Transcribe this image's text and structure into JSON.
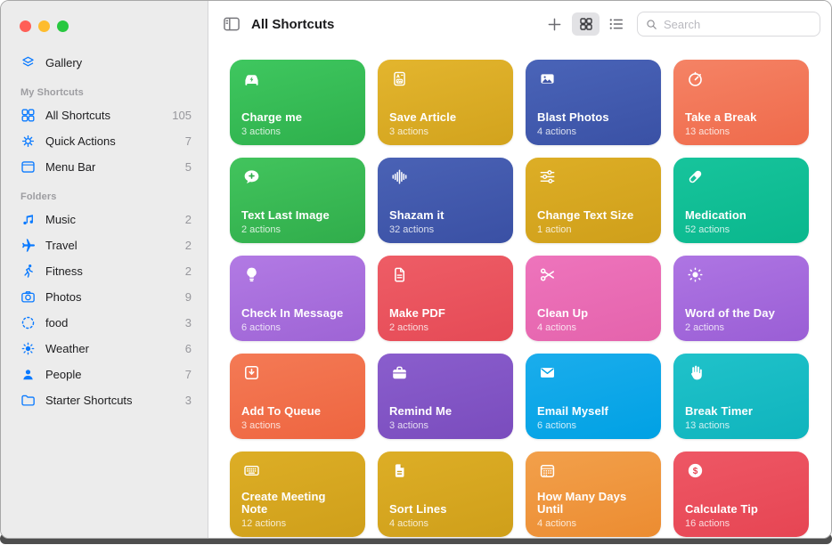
{
  "colors": {
    "accent": "#0a7aff",
    "traffic_red": "#ff5f57",
    "traffic_yellow": "#febc2e",
    "traffic_green": "#28c840"
  },
  "sidebar": {
    "gallery": {
      "label": "Gallery",
      "icon": "layers-icon"
    },
    "my_shortcuts": {
      "header": "My Shortcuts",
      "items": [
        {
          "label": "All Shortcuts",
          "icon": "grid-icon",
          "count": "105"
        },
        {
          "label": "Quick Actions",
          "icon": "gear-icon",
          "count": "7"
        },
        {
          "label": "Menu Bar",
          "icon": "menubar-icon",
          "count": "5"
        }
      ]
    },
    "folders": {
      "header": "Folders",
      "items": [
        {
          "label": "Music",
          "icon": "music-icon",
          "count": "2"
        },
        {
          "label": "Travel",
          "icon": "airplane-icon",
          "count": "2"
        },
        {
          "label": "Fitness",
          "icon": "runner-icon",
          "count": "2"
        },
        {
          "label": "Photos",
          "icon": "camera-icon",
          "count": "9"
        },
        {
          "label": "food",
          "icon": "dashed-circle-icon",
          "count": "3"
        },
        {
          "label": "Weather",
          "icon": "sun-icon",
          "count": "6"
        },
        {
          "label": "People",
          "icon": "person-icon",
          "count": "7"
        },
        {
          "label": "Starter Shortcuts",
          "icon": "folder-icon",
          "count": "3"
        }
      ]
    }
  },
  "toolbar": {
    "title": "All Shortcuts",
    "search_placeholder": "Search"
  },
  "cards": [
    {
      "title": "Charge me",
      "subtitle": "3 actions",
      "icon": "car-charge-icon",
      "color_from": "#3fc75f",
      "color_to": "#2eb04c"
    },
    {
      "title": "Save Article",
      "subtitle": "3 actions",
      "icon": "article-icon",
      "color_from": "#e3b52e",
      "color_to": "#d2a31d"
    },
    {
      "title": "Blast Photos",
      "subtitle": "4 actions",
      "icon": "photo-icon",
      "color_from": "#4a64b8",
      "color_to": "#3a51a5"
    },
    {
      "title": "Take a Break",
      "subtitle": "13 actions",
      "icon": "timer-icon",
      "color_from": "#f58365",
      "color_to": "#ef6a4b"
    },
    {
      "title": "Text Last Image",
      "subtitle": "2 actions",
      "icon": "message-plus-icon",
      "color_from": "#42c45d",
      "color_to": "#30ad4b"
    },
    {
      "title": "Shazam it",
      "subtitle": "32 actions",
      "icon": "waveform-icon",
      "color_from": "#4a62b5",
      "color_to": "#3a50a4"
    },
    {
      "title": "Change Text Size",
      "subtitle": "1 action",
      "icon": "sliders-icon",
      "color_from": "#ddae26",
      "color_to": "#cf9f1a"
    },
    {
      "title": "Medication",
      "subtitle": "52 actions",
      "icon": "pill-icon",
      "color_from": "#17c49c",
      "color_to": "#0ab78d"
    },
    {
      "title": "Check In Message",
      "subtitle": "6 actions",
      "icon": "lightbulb-icon",
      "color_from": "#b27ae4",
      "color_to": "#9e64d5"
    },
    {
      "title": "Make PDF",
      "subtitle": "2 actions",
      "icon": "document-icon",
      "color_from": "#ee5d66",
      "color_to": "#e54a56"
    },
    {
      "title": "Clean Up",
      "subtitle": "4 actions",
      "icon": "scissors-icon",
      "color_from": "#ee74bc",
      "color_to": "#e463ac"
    },
    {
      "title": "Word of the Day",
      "subtitle": "2 actions",
      "icon": "sun-dotted-icon",
      "color_from": "#ae75e3",
      "color_to": "#9a5ed5"
    },
    {
      "title": "Add To Queue",
      "subtitle": "3 actions",
      "icon": "tray-download-icon",
      "color_from": "#f47a55",
      "color_to": "#ee6540"
    },
    {
      "title": "Remind Me",
      "subtitle": "3 actions",
      "icon": "briefcase-icon",
      "color_from": "#8a5ecd",
      "color_to": "#7a4cbd"
    },
    {
      "title": "Email Myself",
      "subtitle": "6 actions",
      "icon": "envelope-icon",
      "color_from": "#1badec",
      "color_to": "#00a1e4"
    },
    {
      "title": "Break Timer",
      "subtitle": "13 actions",
      "icon": "hand-icon",
      "color_from": "#20c2ca",
      "color_to": "#0fb4bd"
    },
    {
      "title": "Create Meeting Note",
      "subtitle": "12 actions",
      "icon": "keyboard-icon",
      "color_from": "#ddae26",
      "color_to": "#cf9f1a"
    },
    {
      "title": "Sort Lines",
      "subtitle": "4 actions",
      "icon": "document-fill-icon",
      "color_from": "#ddae26",
      "color_to": "#cf9f1a"
    },
    {
      "title": "How Many Days Until",
      "subtitle": "4 actions",
      "icon": "calendar-dots-icon",
      "color_from": "#f2a04b",
      "color_to": "#ec8c31"
    },
    {
      "title": "Calculate Tip",
      "subtitle": "16 actions",
      "icon": "dollar-circle-icon",
      "color_from": "#ee5765",
      "color_to": "#e64553"
    }
  ]
}
